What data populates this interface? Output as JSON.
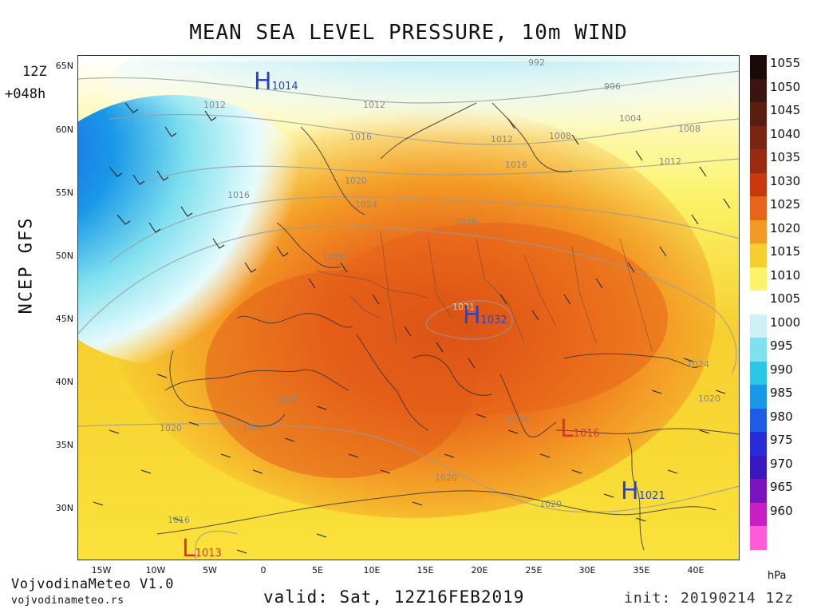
{
  "title": "MEAN SEA LEVEL PRESSURE, 10m WIND",
  "model_label": "NCEP GFS",
  "run_hour": "12Z",
  "lead_time": "+048h",
  "valid_text": "valid: Sat, 12Z16FEB2019",
  "init_text": "init: 20190214 12z",
  "brand": "VojvodinaMeteo V1.0",
  "website": "vojvodinameteo.rs",
  "colorbar": {
    "unit": "hPa",
    "levels": [
      "1055",
      "1050",
      "1045",
      "1040",
      "1035",
      "1030",
      "1025",
      "1020",
      "1015",
      "1010",
      "1005",
      "1000",
      "995",
      "990",
      "985",
      "980",
      "975",
      "970",
      "965",
      "960"
    ],
    "colors": [
      "#1a0a08",
      "#3b1410",
      "#5a1d12",
      "#7a2412",
      "#9c2a10",
      "#c8380c",
      "#e8641a",
      "#f39a25",
      "#f6cf2e",
      "#fbf36a",
      "#ffffff",
      "#cdf1f6",
      "#7fe0ee",
      "#2cc7e6",
      "#1a98e8",
      "#1e5be6",
      "#2a2bd8",
      "#3a18c0",
      "#7a13c0",
      "#c81fc4",
      "#ff5ad8"
    ]
  },
  "lat_labels": [
    "65N",
    "60N",
    "55N",
    "50N",
    "45N",
    "40N",
    "35N",
    "30N"
  ],
  "lon_labels": [
    "15W",
    "10W",
    "5W",
    "0",
    "5E",
    "10E",
    "15E",
    "20E",
    "25E",
    "30E",
    "35E",
    "40E"
  ],
  "pressure_centers": [
    {
      "type": "H",
      "value": "1014",
      "color": "#2244dd"
    },
    {
      "type": "H",
      "value": "1032",
      "color": "#2244dd"
    },
    {
      "type": "H",
      "value": "1021",
      "color": "#2244dd"
    },
    {
      "type": "L",
      "value": "1016",
      "color": "#e03030"
    },
    {
      "type": "L",
      "value": "1013",
      "color": "#e03030"
    }
  ],
  "isobar_labels": [
    "992",
    "996",
    "1004",
    "1008",
    "1012",
    "1012",
    "1012",
    "1012",
    "1016",
    "1016",
    "1016",
    "1020",
    "1020",
    "1020",
    "1020",
    "1020",
    "1024",
    "1024",
    "1024",
    "1024",
    "1028",
    "1028",
    "1028",
    "1031",
    "1008",
    "1016"
  ]
}
